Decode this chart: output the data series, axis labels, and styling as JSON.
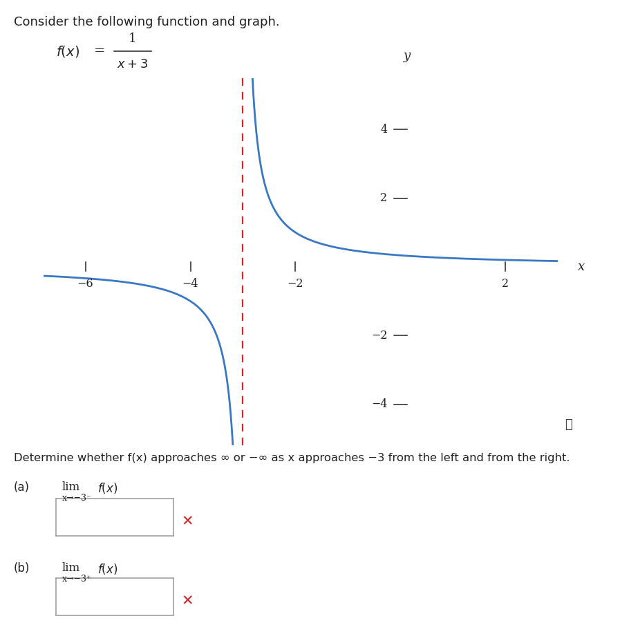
{
  "title_text": "Consider the following function and graph.",
  "xlim": [
    -6.8,
    3.0
  ],
  "ylim": [
    -5.2,
    5.5
  ],
  "xticks": [
    -6,
    -4,
    -2,
    2
  ],
  "yticks": [
    -4,
    -2,
    2,
    4
  ],
  "xlabel": "x",
  "ylabel": "y",
  "curve_color": "#3878c5",
  "asymptote_color": "#dd2222",
  "asymptote_x": -3,
  "curve_linewidth": 2.0,
  "asymptote_linewidth": 1.6,
  "background_color": "#ffffff",
  "graph_clip_ymin": -5.2,
  "graph_clip_ymax": 5.5,
  "axis_color": "#222222",
  "text_color": "#222222",
  "title_color": "#222222",
  "info_color": "#333333",
  "red_x_color": "#cc2222",
  "determine_text": "Determine whether f(x) approaches ∞ or −∞ as x approaches −3 from the left and from the right.",
  "box_edge_color": "#999999"
}
